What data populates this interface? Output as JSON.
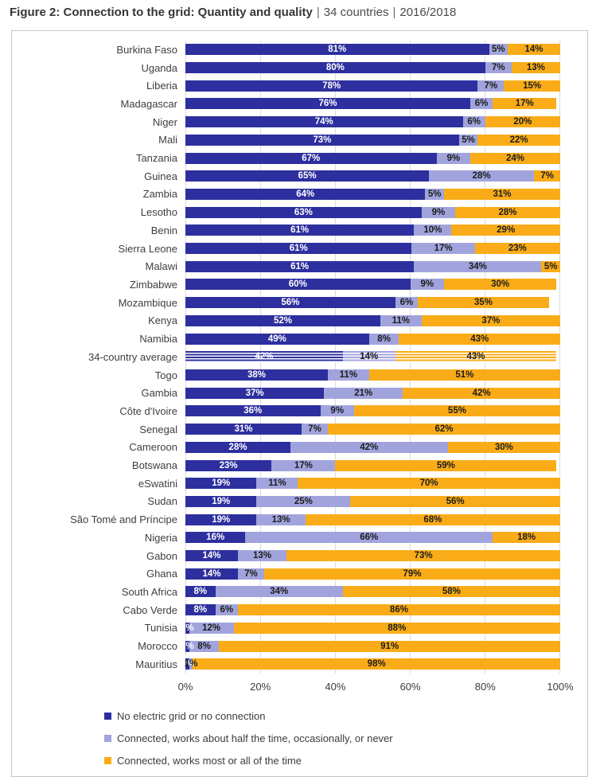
{
  "title": {
    "main": "Figure 2: Connection to the grid: Quantity and quality",
    "separator": "|",
    "countries": "34 countries",
    "years": "2016/2018"
  },
  "chart_data": {
    "type": "bar",
    "orientation": "horizontal",
    "stacked": true,
    "x_axis": {
      "ticks": [
        "0%",
        "20%",
        "40%",
        "60%",
        "80%",
        "100%"
      ],
      "min": 0,
      "max": 100,
      "grid": true
    },
    "legend_position": "bottom-left",
    "legend": [
      {
        "label": "No electric grid or no connection",
        "color": "#2D2F9E"
      },
      {
        "label": "Connected, works about half the time, occasionally, or never",
        "color": "#A1A4DC"
      },
      {
        "label": "Connected, works most or all of the time",
        "color": "#FAAC18"
      }
    ],
    "rows": [
      {
        "country": "Burkina Faso",
        "values": [
          81,
          5,
          14
        ]
      },
      {
        "country": "Uganda",
        "values": [
          80,
          7,
          13
        ]
      },
      {
        "country": "Liberia",
        "values": [
          78,
          7,
          15
        ]
      },
      {
        "country": "Madagascar",
        "values": [
          76,
          6,
          17
        ]
      },
      {
        "country": "Niger",
        "values": [
          74,
          6,
          20
        ]
      },
      {
        "country": "Mali",
        "values": [
          73,
          5,
          22
        ]
      },
      {
        "country": "Tanzania",
        "values": [
          67,
          9,
          24
        ]
      },
      {
        "country": "Guinea",
        "values": [
          65,
          28,
          7
        ]
      },
      {
        "country": "Zambia",
        "values": [
          64,
          5,
          31
        ]
      },
      {
        "country": "Lesotho",
        "values": [
          63,
          9,
          28
        ]
      },
      {
        "country": "Benin",
        "values": [
          61,
          10,
          29
        ]
      },
      {
        "country": "Sierra Leone",
        "values": [
          61,
          17,
          23
        ]
      },
      {
        "country": "Malawi",
        "values": [
          61,
          34,
          5
        ]
      },
      {
        "country": "Zimbabwe",
        "values": [
          60,
          9,
          30
        ]
      },
      {
        "country": "Mozambique",
        "values": [
          56,
          6,
          35
        ]
      },
      {
        "country": "Kenya",
        "values": [
          52,
          11,
          37
        ]
      },
      {
        "country": "Namibia",
        "values": [
          49,
          8,
          43
        ]
      },
      {
        "country": "34-country average",
        "values": [
          42,
          14,
          43
        ],
        "average": true
      },
      {
        "country": "Togo",
        "values": [
          38,
          11,
          51
        ]
      },
      {
        "country": "Gambia",
        "values": [
          37,
          21,
          42
        ]
      },
      {
        "country": "Côte d'Ivoire",
        "values": [
          36,
          9,
          55
        ]
      },
      {
        "country": "Senegal",
        "values": [
          31,
          7,
          62
        ]
      },
      {
        "country": "Cameroon",
        "values": [
          28,
          42,
          30
        ]
      },
      {
        "country": "Botswana",
        "values": [
          23,
          17,
          59
        ]
      },
      {
        "country": "eSwatini",
        "values": [
          19,
          11,
          70
        ]
      },
      {
        "country": "Sudan",
        "values": [
          19,
          25,
          56
        ]
      },
      {
        "country": "São Tomé and Príncipe",
        "values": [
          19,
          13,
          68
        ]
      },
      {
        "country": "Nigeria",
        "values": [
          16,
          66,
          18
        ]
      },
      {
        "country": "Gabon",
        "values": [
          14,
          13,
          73
        ]
      },
      {
        "country": "Ghana",
        "values": [
          14,
          7,
          79
        ]
      },
      {
        "country": "South Africa",
        "values": [
          8,
          34,
          58
        ]
      },
      {
        "country": "Cabo Verde",
        "values": [
          8,
          6,
          86
        ]
      },
      {
        "country": "Tunisia",
        "values": [
          1,
          12,
          88
        ]
      },
      {
        "country": "Morocco",
        "values": [
          1,
          8,
          91
        ]
      },
      {
        "country": "Mauritius",
        "values": [
          1,
          1,
          98
        ]
      }
    ]
  }
}
